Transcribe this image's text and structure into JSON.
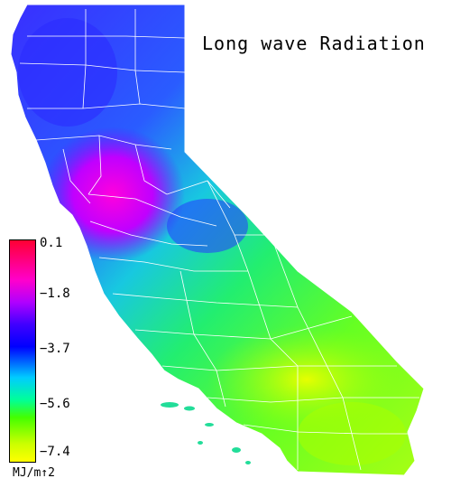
{
  "title": "Long wave Radiation",
  "legend": {
    "ticks": [
      "0.1",
      "−1.8",
      "−3.7",
      "−5.6",
      "−7.4"
    ],
    "units": "MJ/m↑2",
    "colors": [
      "#ff0033",
      "#ff00cc",
      "#4000ff",
      "#00ccff",
      "#44ff00",
      "#ffff00"
    ]
  },
  "map": {
    "region": "California",
    "boundary_color": "#ffffff"
  }
}
